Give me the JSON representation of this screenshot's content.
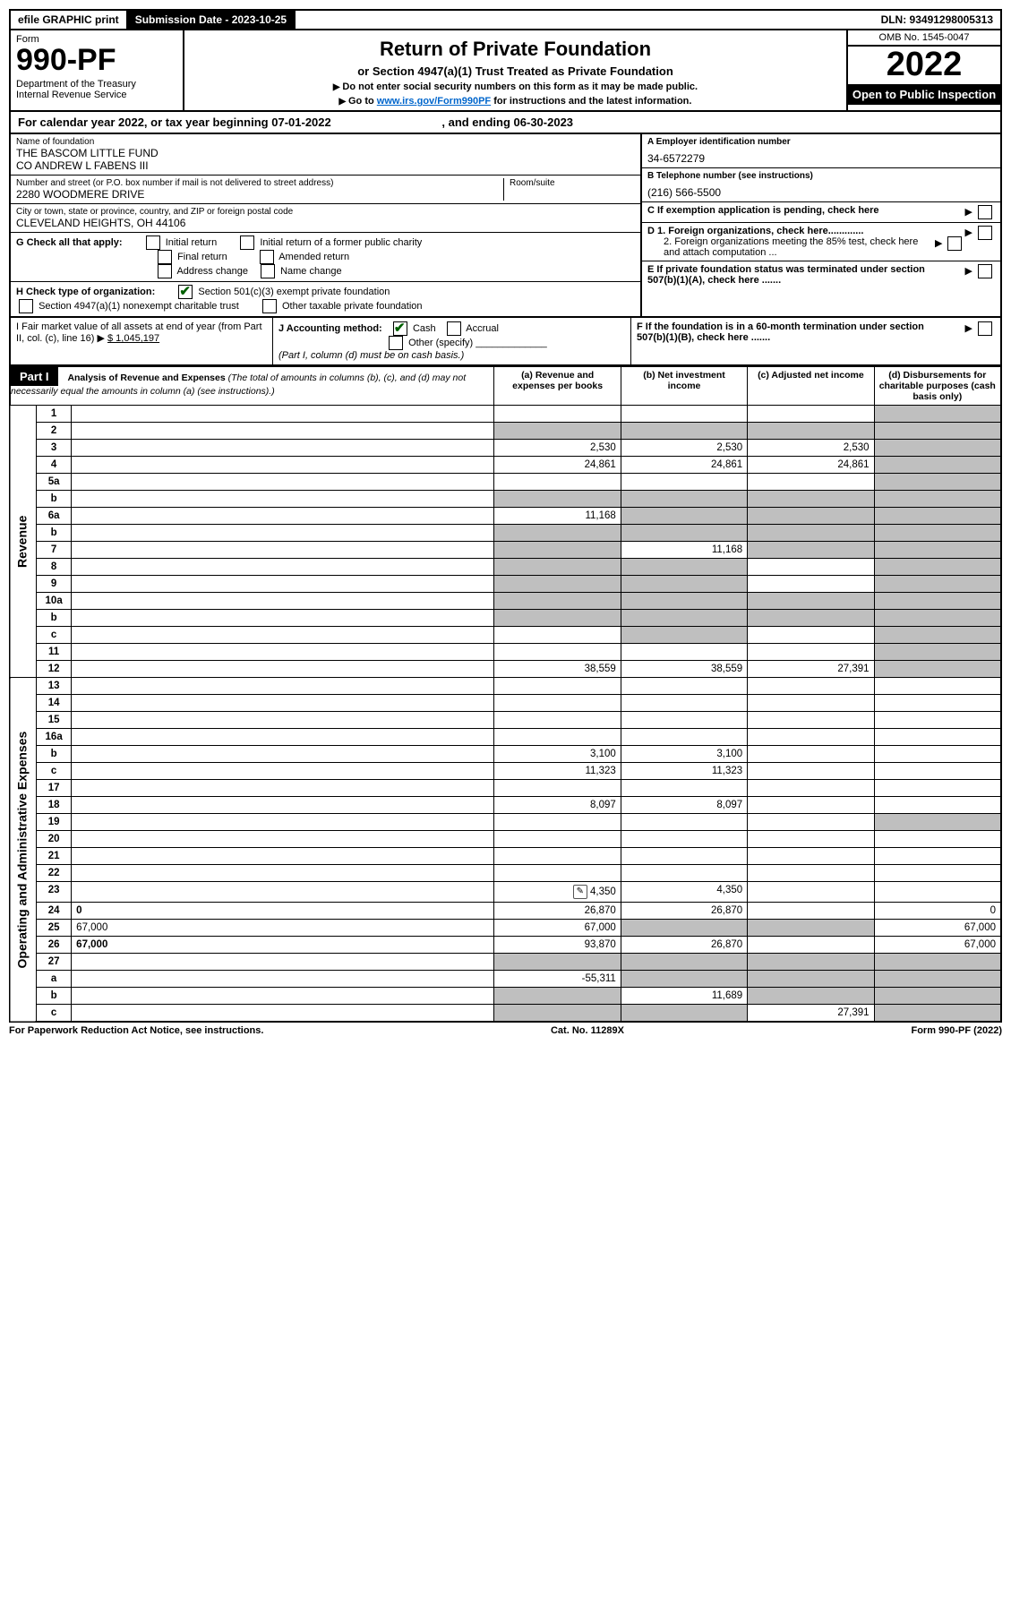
{
  "topbar": {
    "efile": "efile GRAPHIC print",
    "submission_label": "Submission Date - 2023-10-25",
    "dln": "DLN: 93491298005313"
  },
  "header": {
    "form_label": "Form",
    "form_no": "990-PF",
    "dept1": "Department of the Treasury",
    "dept2": "Internal Revenue Service",
    "title": "Return of Private Foundation",
    "subtitle": "or Section 4947(a)(1) Trust Treated as Private Foundation",
    "instr1": "Do not enter social security numbers on this form as it may be made public.",
    "instr2_prefix": "Go to ",
    "instr2_link": "www.irs.gov/Form990PF",
    "instr2_suffix": " for instructions and the latest information.",
    "omb": "OMB No. 1545-0047",
    "year": "2022",
    "open": "Open to Public Inspection"
  },
  "cal_year": {
    "prefix": "For calendar year 2022, or tax year beginning ",
    "begin": "07-01-2022",
    "mid": " , and ending ",
    "end": "06-30-2023"
  },
  "foundation": {
    "name_lbl": "Name of foundation",
    "name1": "THE BASCOM LITTLE FUND",
    "name2": "CO ANDREW L FABENS III",
    "addr_lbl": "Number and street (or P.O. box number if mail is not delivered to street address)",
    "addr": "2280 WOODMERE DRIVE",
    "room_lbl": "Room/suite",
    "city_lbl": "City or town, state or province, country, and ZIP or foreign postal code",
    "city": "CLEVELAND HEIGHTS, OH  44106"
  },
  "right_info": {
    "a_lbl": "A Employer identification number",
    "a_val": "34-6572279",
    "b_lbl": "B Telephone number (see instructions)",
    "b_val": "(216) 566-5500",
    "c_lbl": "C If exemption application is pending, check here",
    "d1": "D 1. Foreign organizations, check here.............",
    "d2": "2. Foreign organizations meeting the 85% test, check here and attach computation ...",
    "e": "E  If private foundation status was terminated under section 507(b)(1)(A), check here .......",
    "f": "F  If the foundation is in a 60-month termination under section 507(b)(1)(B), check here ......."
  },
  "g": {
    "lbl": "G Check all that apply:",
    "opts": [
      "Initial return",
      "Initial return of a former public charity",
      "Final return",
      "Amended return",
      "Address change",
      "Name change"
    ]
  },
  "h": {
    "lbl": "H Check type of organization:",
    "opt1": "Section 501(c)(3) exempt private foundation",
    "opt2": "Section 4947(a)(1) nonexempt charitable trust",
    "opt3": "Other taxable private foundation"
  },
  "i": {
    "lbl": "I Fair market value of all assets at end of year (from Part II, col. (c), line 16)",
    "val": "$  1,045,197"
  },
  "j": {
    "lbl": "J Accounting method:",
    "opt1": "Cash",
    "opt2": "Accrual",
    "opt3": "Other (specify)",
    "note": "(Part I, column (d) must be on cash basis.)"
  },
  "part1": {
    "label": "Part I",
    "title": "Analysis of Revenue and Expenses",
    "subtitle": " (The total of amounts in columns (b), (c), and (d) may not necessarily equal the amounts in column (a) (see instructions).)",
    "col_a": "(a) Revenue and expenses per books",
    "col_b": "(b) Net investment income",
    "col_c": "(c) Adjusted net income",
    "col_d": "(d) Disbursements for charitable purposes (cash basis only)"
  },
  "vert": {
    "revenue": "Revenue",
    "expenses": "Operating and Administrative Expenses"
  },
  "rows": [
    {
      "n": "1",
      "d": "",
      "a": "",
      "b": "",
      "c": "",
      "shade_d": true
    },
    {
      "n": "2",
      "d": "",
      "a": "",
      "b": "",
      "c": "",
      "shade_a": true,
      "shade_b": true,
      "shade_c": true,
      "shade_d": true,
      "bold_not": true
    },
    {
      "n": "3",
      "d": "",
      "a": "2,530",
      "b": "2,530",
      "c": "2,530",
      "shade_d": true
    },
    {
      "n": "4",
      "d": "",
      "a": "24,861",
      "b": "24,861",
      "c": "24,861",
      "shade_d": true
    },
    {
      "n": "5a",
      "d": "",
      "a": "",
      "b": "",
      "c": "",
      "shade_d": true
    },
    {
      "n": "b",
      "d": "",
      "a": "",
      "b": "",
      "c": "",
      "shade_a": true,
      "shade_b": true,
      "shade_c": true,
      "shade_d": true
    },
    {
      "n": "6a",
      "d": "",
      "a": "11,168",
      "b": "",
      "c": "",
      "shade_b": true,
      "shade_c": true,
      "shade_d": true
    },
    {
      "n": "b",
      "d": "",
      "a": "",
      "b": "",
      "c": "",
      "shade_a": true,
      "shade_b": true,
      "shade_c": true,
      "shade_d": true
    },
    {
      "n": "7",
      "d": "",
      "a": "",
      "b": "11,168",
      "c": "",
      "shade_a": true,
      "shade_c": true,
      "shade_d": true
    },
    {
      "n": "8",
      "d": "",
      "a": "",
      "b": "",
      "c": "",
      "shade_a": true,
      "shade_b": true,
      "shade_d": true
    },
    {
      "n": "9",
      "d": "",
      "a": "",
      "b": "",
      "c": "",
      "shade_a": true,
      "shade_b": true,
      "shade_d": true
    },
    {
      "n": "10a",
      "d": "",
      "a": "",
      "b": "",
      "c": "",
      "shade_a": true,
      "shade_b": true,
      "shade_c": true,
      "shade_d": true
    },
    {
      "n": "b",
      "d": "",
      "a": "",
      "b": "",
      "c": "",
      "shade_a": true,
      "shade_b": true,
      "shade_c": true,
      "shade_d": true
    },
    {
      "n": "c",
      "d": "",
      "a": "",
      "b": "",
      "c": "",
      "shade_b": true,
      "shade_d": true
    },
    {
      "n": "11",
      "d": "",
      "a": "",
      "b": "",
      "c": "",
      "shade_d": true
    },
    {
      "n": "12",
      "d": "",
      "a": "38,559",
      "b": "38,559",
      "c": "27,391",
      "bold": true,
      "shade_d": true
    }
  ],
  "exp_rows": [
    {
      "n": "13",
      "d": "",
      "a": "",
      "b": "",
      "c": ""
    },
    {
      "n": "14",
      "d": "",
      "a": "",
      "b": "",
      "c": ""
    },
    {
      "n": "15",
      "d": "",
      "a": "",
      "b": "",
      "c": ""
    },
    {
      "n": "16a",
      "d": "",
      "a": "",
      "b": "",
      "c": ""
    },
    {
      "n": "b",
      "d": "",
      "a": "3,100",
      "b": "3,100",
      "c": ""
    },
    {
      "n": "c",
      "d": "",
      "a": "11,323",
      "b": "11,323",
      "c": ""
    },
    {
      "n": "17",
      "d": "",
      "a": "",
      "b": "",
      "c": ""
    },
    {
      "n": "18",
      "d": "",
      "a": "8,097",
      "b": "8,097",
      "c": ""
    },
    {
      "n": "19",
      "d": "",
      "a": "",
      "b": "",
      "c": "",
      "shade_d": true
    },
    {
      "n": "20",
      "d": "",
      "a": "",
      "b": "",
      "c": ""
    },
    {
      "n": "21",
      "d": "",
      "a": "",
      "b": "",
      "c": ""
    },
    {
      "n": "22",
      "d": "",
      "a": "",
      "b": "",
      "c": ""
    },
    {
      "n": "23",
      "d": "",
      "a": "4,350",
      "b": "4,350",
      "c": "",
      "icon": true
    },
    {
      "n": "24",
      "d": "0",
      "a": "26,870",
      "b": "26,870",
      "c": "",
      "bold": true
    },
    {
      "n": "25",
      "d": "67,000",
      "a": "67,000",
      "b": "",
      "c": "",
      "shade_b": true,
      "shade_c": true
    },
    {
      "n": "26",
      "d": "67,000",
      "a": "93,870",
      "b": "26,870",
      "c": "",
      "bold": true
    },
    {
      "n": "27",
      "d": "",
      "a": "",
      "b": "",
      "c": "",
      "shade_a": true,
      "shade_b": true,
      "shade_c": true,
      "shade_d": true
    },
    {
      "n": "a",
      "d": "",
      "a": "-55,311",
      "b": "",
      "c": "",
      "bold": true,
      "shade_b": true,
      "shade_c": true,
      "shade_d": true
    },
    {
      "n": "b",
      "d": "",
      "a": "",
      "b": "11,689",
      "c": "",
      "bold": true,
      "shade_a": true,
      "shade_c": true,
      "shade_d": true
    },
    {
      "n": "c",
      "d": "",
      "a": "",
      "b": "",
      "c": "27,391",
      "bold": true,
      "shade_a": true,
      "shade_b": true,
      "shade_d": true
    }
  ],
  "footer": {
    "left": "For Paperwork Reduction Act Notice, see instructions.",
    "mid": "Cat. No. 11289X",
    "right": "Form 990-PF (2022)"
  }
}
